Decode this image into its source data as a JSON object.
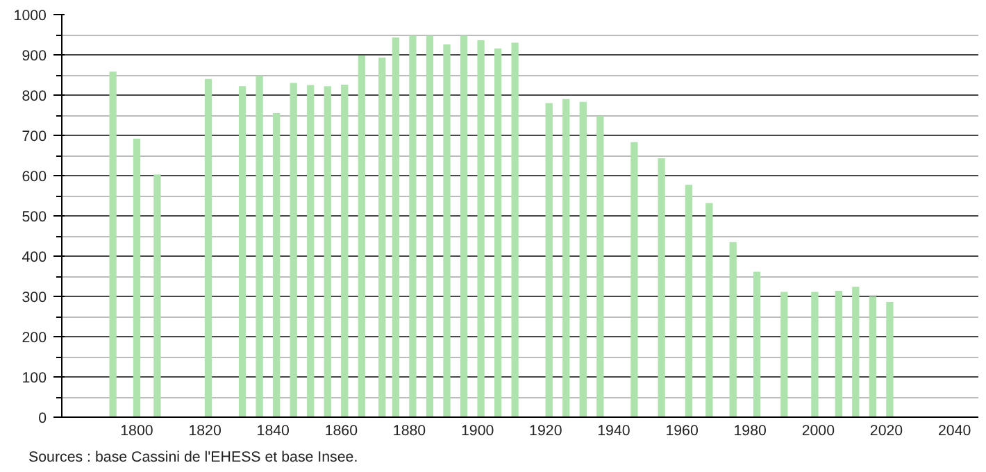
{
  "chart_data": {
    "type": "bar",
    "x": [
      1793,
      1800,
      1806,
      1821,
      1831,
      1836,
      1841,
      1846,
      1851,
      1856,
      1861,
      1866,
      1872,
      1876,
      1881,
      1886,
      1891,
      1896,
      1901,
      1906,
      1911,
      1921,
      1926,
      1931,
      1936,
      1946,
      1954,
      1962,
      1968,
      1975,
      1982,
      1990,
      1999,
      2006,
      2011,
      2016,
      2021
    ],
    "values": [
      858,
      692,
      603,
      840,
      822,
      848,
      755,
      830,
      825,
      822,
      826,
      898,
      893,
      943,
      948,
      948,
      926,
      948,
      936,
      916,
      930,
      780,
      790,
      783,
      748,
      683,
      643,
      577,
      532,
      435,
      361,
      311,
      311,
      314,
      324,
      300,
      286
    ],
    "color": "#aee3ae",
    "xlim": [
      1778,
      2047
    ],
    "xticks": [
      1800,
      1820,
      1840,
      1860,
      1880,
      1900,
      1920,
      1940,
      1960,
      1980,
      2000,
      2020,
      2040
    ],
    "ylim": [
      0,
      1000
    ],
    "yticks": [
      0,
      100,
      200,
      300,
      400,
      500,
      600,
      700,
      800,
      900,
      1000
    ],
    "grid": "y",
    "annotations": [
      "Sources : base Cassini de l'EHESS et base Insee."
    ]
  }
}
